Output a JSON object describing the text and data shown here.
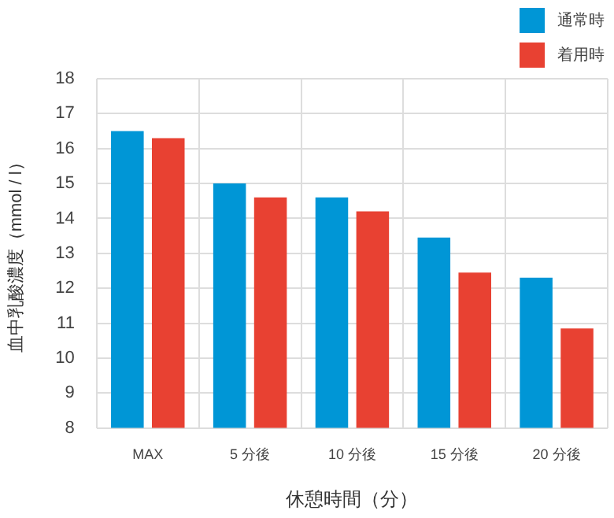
{
  "chart_data": {
    "type": "bar",
    "xlabel": "休憩時間（分）",
    "ylabel": "血中乳酸濃度（mmol / l）",
    "categories": [
      "MAX",
      "5 分後",
      "10 分後",
      "15 分後",
      "20 分後"
    ],
    "series": [
      {
        "name": "通常時",
        "color": "#0096d6",
        "values": [
          16.5,
          15.0,
          14.6,
          13.45,
          12.3
        ]
      },
      {
        "name": "着用時",
        "color": "#e84132",
        "values": [
          16.3,
          14.6,
          14.2,
          12.45,
          10.85
        ]
      }
    ],
    "ylim": [
      8,
      18
    ],
    "yticks": [
      8,
      9,
      10,
      11,
      12,
      13,
      14,
      15,
      16,
      17,
      18
    ],
    "grid": true,
    "legend": "top right"
  }
}
